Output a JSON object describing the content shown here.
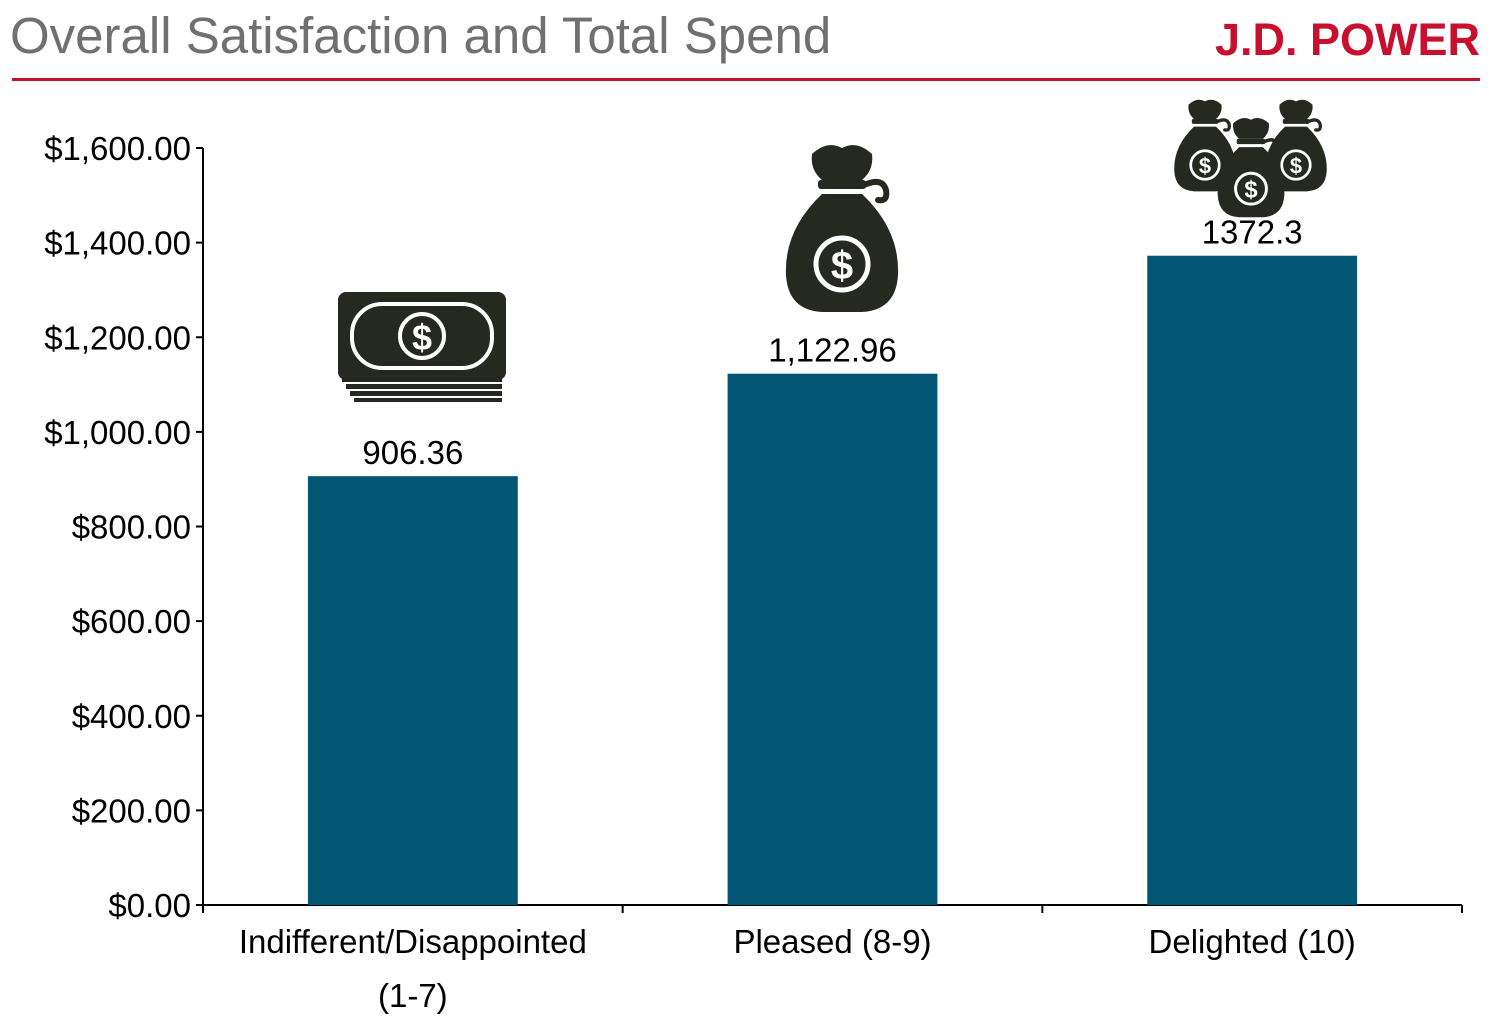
{
  "header": {
    "title": "Overall Satisfaction and Total Spend",
    "brand": "J.D. POWER",
    "brand_color": "#c8102e",
    "title_color": "#707070"
  },
  "chart_data": {
    "type": "bar",
    "categories": [
      [
        "Indifferent/Disappointed",
        "(1-7)"
      ],
      [
        "Pleased (8-9)"
      ],
      [
        "Delighted (10)"
      ]
    ],
    "values": [
      906.36,
      1122.96,
      1372.3
    ],
    "data_labels": [
      "906.36",
      "1,122.96",
      "1372.3"
    ],
    "ylim": [
      0,
      1600
    ],
    "yticks": [
      0,
      200,
      400,
      600,
      800,
      1000,
      1200,
      1400,
      1600
    ],
    "ytick_labels": [
      "$0.00",
      "$200.00",
      "$400.00",
      "$600.00",
      "$800.00",
      "$1,000.00",
      "$1,200.00",
      "$1,400.00",
      "$1,600.00"
    ],
    "bar_color": "#035574",
    "grid": false,
    "legend": "none",
    "icons": [
      "cash-stack-icon",
      "money-bag-icon",
      "money-bags-icon"
    ]
  }
}
